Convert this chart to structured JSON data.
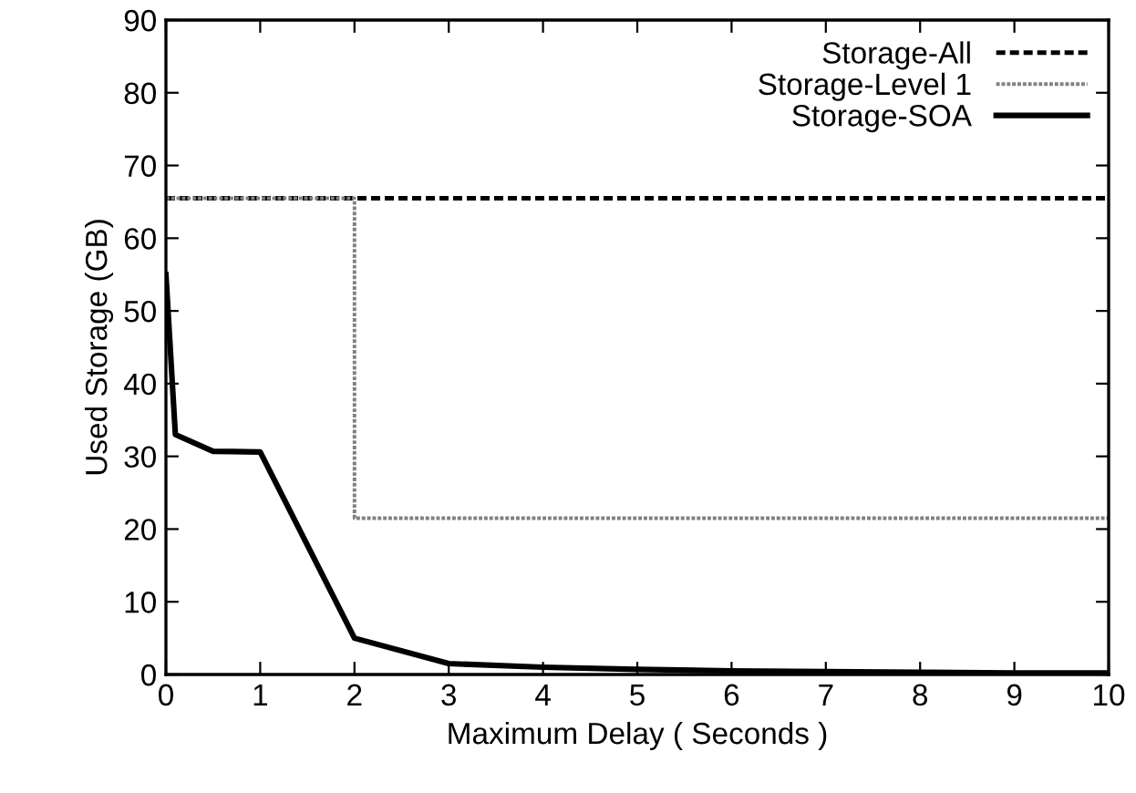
{
  "chart_data": {
    "type": "line",
    "xlabel": "Maximum Delay ( Seconds )",
    "ylabel": "Used Storage (GB)",
    "xlim": [
      0,
      10
    ],
    "ylim": [
      0,
      90
    ],
    "xticks": [
      0,
      1,
      2,
      3,
      4,
      5,
      6,
      7,
      8,
      9,
      10
    ],
    "yticks": [
      0,
      10,
      20,
      30,
      40,
      50,
      60,
      70,
      80,
      90
    ],
    "grid": false,
    "legend": "top right",
    "marker": "none",
    "series": [
      {
        "name": "Storage-All",
        "color": "#000000",
        "line_style": "dashed",
        "x": [
          0,
          10
        ],
        "values": [
          65.5,
          65.5
        ]
      },
      {
        "name": "Storage-Level 1",
        "color": "#808080",
        "line_style": "dotted",
        "x": [
          0,
          2,
          2,
          10
        ],
        "values": [
          65.5,
          65.5,
          21.5,
          21.5
        ]
      },
      {
        "name": "Storage-SOA",
        "color": "#000000",
        "line_style": "solid",
        "x": [
          0,
          0.1,
          0.5,
          1,
          2,
          3,
          4,
          5,
          6,
          7,
          8,
          9,
          10
        ],
        "values": [
          55,
          33,
          30.7,
          30.6,
          5,
          1.5,
          1.0,
          0.7,
          0.5,
          0.4,
          0.3,
          0.2,
          0.2
        ]
      }
    ]
  }
}
